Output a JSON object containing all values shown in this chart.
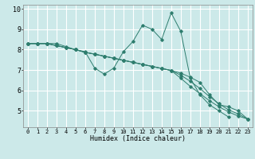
{
  "xlabel": "Humidex (Indice chaleur)",
  "background_color": "#cce9e9",
  "grid_color": "#ffffff",
  "line_color": "#2e7d6e",
  "xlim": [
    -0.5,
    23.5
  ],
  "ylim": [
    4.2,
    10.2
  ],
  "yticks": [
    5,
    6,
    7,
    8,
    9,
    10
  ],
  "xticks": [
    0,
    1,
    2,
    3,
    4,
    5,
    6,
    7,
    8,
    9,
    10,
    11,
    12,
    13,
    14,
    15,
    16,
    17,
    18,
    19,
    20,
    21,
    22,
    23
  ],
  "series": [
    [
      8.3,
      8.3,
      8.3,
      8.3,
      8.15,
      8.0,
      7.9,
      7.1,
      6.8,
      7.1,
      7.9,
      8.4,
      9.2,
      9.0,
      8.5,
      9.8,
      8.9,
      6.6,
      5.8,
      5.3,
      5.0,
      4.7,
      null,
      null
    ],
    [
      8.3,
      8.3,
      8.3,
      8.2,
      8.1,
      8.0,
      7.87,
      7.78,
      7.68,
      7.58,
      7.48,
      7.38,
      7.28,
      7.18,
      7.08,
      6.98,
      6.85,
      6.65,
      6.4,
      5.8,
      5.3,
      5.2,
      5.0,
      4.6
    ],
    [
      8.3,
      8.3,
      8.3,
      8.2,
      8.1,
      8.0,
      7.87,
      7.78,
      7.68,
      7.58,
      7.48,
      7.38,
      7.28,
      7.18,
      7.08,
      6.98,
      6.75,
      6.45,
      6.1,
      5.7,
      5.35,
      5.05,
      4.85,
      4.6
    ],
    [
      8.3,
      8.3,
      8.3,
      8.2,
      8.1,
      8.0,
      7.87,
      7.78,
      7.68,
      7.58,
      7.48,
      7.38,
      7.28,
      7.18,
      7.08,
      6.98,
      6.6,
      6.2,
      5.85,
      5.5,
      5.2,
      4.95,
      4.75,
      4.6
    ]
  ]
}
